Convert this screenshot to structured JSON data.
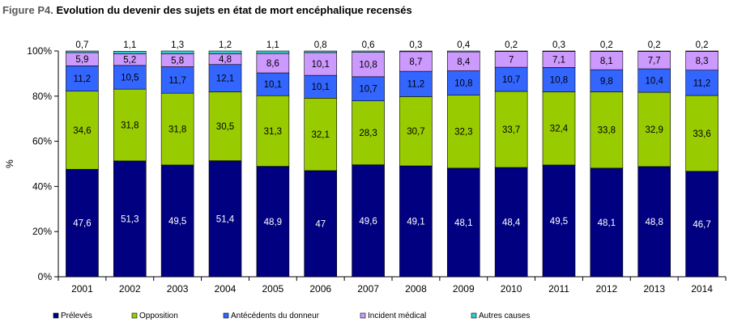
{
  "title_prefix": "Figure P4.",
  "title_text": "Evolution du devenir des sujets en état de mort encéphalique recensés",
  "chart_data": {
    "type": "bar",
    "stacked": true,
    "categories": [
      "2001",
      "2002",
      "2003",
      "2004",
      "2005",
      "2006",
      "2007",
      "2008",
      "2009",
      "2010",
      "2011",
      "2012",
      "2013",
      "2014"
    ],
    "series": [
      {
        "name": "Prélevés",
        "color": "#000080",
        "label_color": "#ffffff",
        "values": [
          47.6,
          51.3,
          49.5,
          51.4,
          48.9,
          47,
          49.6,
          49.1,
          48.1,
          48.4,
          49.5,
          48.1,
          48.8,
          46.7
        ],
        "labels": [
          "47,6",
          "51,3",
          "49,5",
          "51,4",
          "48,9",
          "47",
          "49,6",
          "49,1",
          "48,1",
          "48,4",
          "49,5",
          "48,1",
          "48,8",
          "46,7"
        ]
      },
      {
        "name": "Opposition",
        "color": "#99CC00",
        "label_color": "#000000",
        "values": [
          34.6,
          31.8,
          31.8,
          30.5,
          31.3,
          32.1,
          28.3,
          30.7,
          32.3,
          33.7,
          32.4,
          33.8,
          32.9,
          33.6
        ],
        "labels": [
          "34,6",
          "31,8",
          "31,8",
          "30,5",
          "31,3",
          "32,1",
          "28,3",
          "30,7",
          "32,3",
          "33,7",
          "32,4",
          "33,8",
          "32,9",
          "33,6"
        ]
      },
      {
        "name": "Antécédents du donneur",
        "color": "#3366FF",
        "label_color": "#000000",
        "values": [
          11.2,
          10.5,
          11.7,
          12.1,
          10.1,
          10.1,
          10.7,
          11.2,
          10.8,
          10.7,
          10.8,
          9.8,
          10.4,
          11.2
        ],
        "labels": [
          "11,2",
          "10,5",
          "11,7",
          "12,1",
          "10,1",
          "10,1",
          "10,7",
          "11,2",
          "10,8",
          "10,7",
          "10,8",
          "9,8",
          "10,4",
          "11,2"
        ]
      },
      {
        "name": "Incident médical",
        "color": "#CC99FF",
        "label_color": "#000000",
        "values": [
          5.9,
          5.2,
          5.8,
          4.8,
          8.6,
          10.1,
          10.8,
          8.7,
          8.4,
          7,
          7.1,
          8.1,
          7.7,
          8.3
        ],
        "labels": [
          "5,9",
          "5,2",
          "5,8",
          "4,8",
          "8,6",
          "10,1",
          "10,8",
          "8,7",
          "8,4",
          "7",
          "7,1",
          "8,1",
          "7,7",
          "8,3"
        ]
      },
      {
        "name": "Autres causes",
        "color": "#33CCCC",
        "label_color": "#000000",
        "values": [
          0.7,
          1.1,
          1.3,
          1.2,
          1.1,
          0.8,
          0.6,
          0.3,
          0.4,
          0.2,
          0.3,
          0.2,
          0.2,
          0.2
        ],
        "labels": [
          "0,7",
          "1,1",
          "1,3",
          "1,2",
          "1,1",
          "0,8",
          "0,6",
          "0,3",
          "0,4",
          "0,2",
          "0,3",
          "0,2",
          "0,2",
          "0,2"
        ]
      }
    ],
    "ylabel": "%",
    "ylim": [
      0,
      100
    ],
    "yticks": [
      "0%",
      "20%",
      "40%",
      "60%",
      "80%",
      "100%"
    ],
    "legend_position": "bottom",
    "grid": false
  }
}
